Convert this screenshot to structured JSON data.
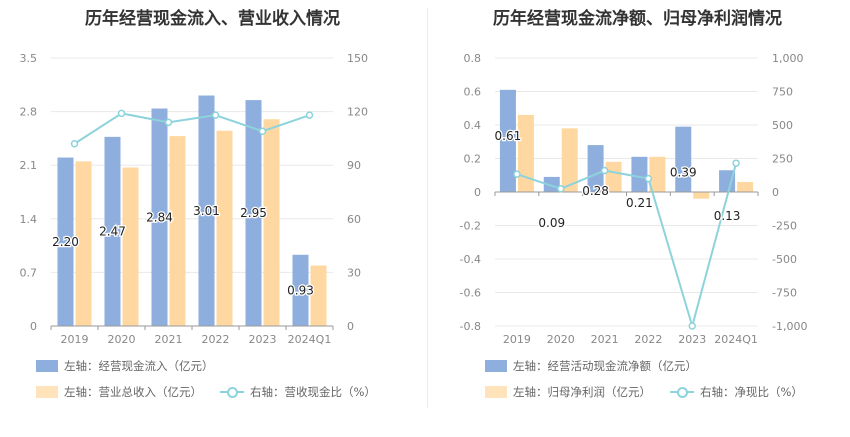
{
  "chart_data": [
    {
      "type": "bar",
      "title": "历年经营现金流入、营业收入情况",
      "categories": [
        "2019",
        "2020",
        "2021",
        "2022",
        "2023",
        "2024Q1"
      ],
      "ylim_left": [
        0,
        3.5
      ],
      "yticks_left": [
        "0",
        "0.7",
        "1.4",
        "2.1",
        "2.8",
        "3.5"
      ],
      "ylim_right": [
        0,
        150
      ],
      "yticks_right": [
        "0",
        "30",
        "60",
        "90",
        "120",
        "150"
      ],
      "series": [
        {
          "name": "左轴：经营现金流入（亿元）",
          "axis": "left",
          "kind": "bar",
          "color": "#8eaedd",
          "values": [
            2.2,
            2.47,
            2.84,
            3.01,
            2.95,
            0.93
          ],
          "labels": [
            "2.20",
            "2.47",
            "2.84",
            "3.01",
            "2.95",
            "0.93"
          ]
        },
        {
          "name": "左轴：营业总收入（亿元）",
          "axis": "left",
          "kind": "bar",
          "color": "#fed8a0",
          "values": [
            2.15,
            2.07,
            2.48,
            2.55,
            2.7,
            0.79
          ]
        },
        {
          "name": "右轴：营收现金比（%）",
          "axis": "right",
          "kind": "line",
          "color": "#8dd3dc",
          "values": [
            102,
            119,
            114,
            118,
            109,
            118
          ]
        }
      ],
      "grid": true
    },
    {
      "type": "bar",
      "title": "历年经营现金流净额、归母净利润情况",
      "categories": [
        "2019",
        "2020",
        "2021",
        "2022",
        "2023",
        "2024Q1"
      ],
      "ylim_left": [
        -0.8,
        0.8
      ],
      "yticks_left": [
        "-0.8",
        "-0.6",
        "-0.4",
        "-0.2",
        "0",
        "0.2",
        "0.4",
        "0.6",
        "0.8"
      ],
      "ylim_right": [
        -1000,
        1000
      ],
      "yticks_right": [
        "-1,000",
        "-750",
        "-500",
        "-250",
        "0",
        "250",
        "500",
        "750",
        "1,000"
      ],
      "series": [
        {
          "name": "左轴：经营活动现金流净额（亿元）",
          "axis": "left",
          "kind": "bar",
          "color": "#8eaedd",
          "values": [
            0.61,
            0.09,
            0.28,
            0.21,
            0.39,
            0.13
          ],
          "labels": [
            "0.61",
            "0.09",
            "0.28",
            "0.21",
            "0.39",
            "0.13"
          ]
        },
        {
          "name": "左轴：归母净利润（亿元）",
          "axis": "left",
          "kind": "bar",
          "color": "#fed8a0",
          "values": [
            0.46,
            0.38,
            0.18,
            0.21,
            -0.04,
            0.06
          ]
        },
        {
          "name": "右轴：净现比（%）",
          "axis": "right",
          "kind": "line",
          "color": "#8dd3dc",
          "values": [
            133,
            24,
            160,
            100,
            -1000,
            215
          ]
        }
      ],
      "grid": true
    }
  ]
}
